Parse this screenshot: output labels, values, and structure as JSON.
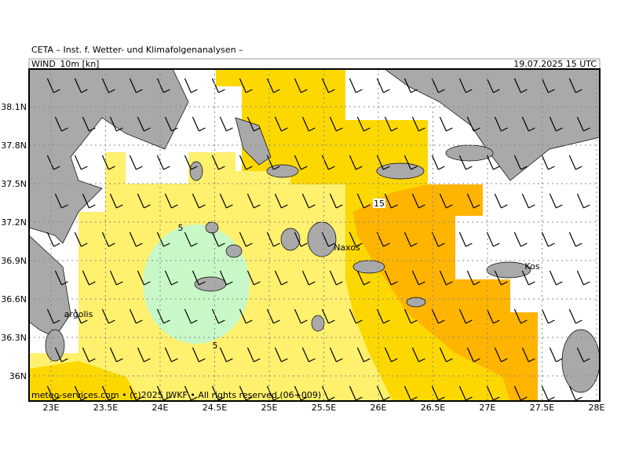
{
  "header": {
    "title": "CETA – Inst. f. Wetter- und Klimafolgenanalysen –",
    "field": "WIND_10m [kn]",
    "valid_time": "19.07.2025 15 UTC"
  },
  "axes": {
    "lon_ticks": [
      {
        "value": 23,
        "label": "23E"
      },
      {
        "value": 23.5,
        "label": "23.5E"
      },
      {
        "value": 24,
        "label": "24E"
      },
      {
        "value": 24.5,
        "label": "24.5E"
      },
      {
        "value": 25,
        "label": "25E"
      },
      {
        "value": 25.5,
        "label": "25.5E"
      },
      {
        "value": 26,
        "label": "26E"
      },
      {
        "value": 26.5,
        "label": "26.5E"
      },
      {
        "value": 27,
        "label": "27E"
      },
      {
        "value": 27.5,
        "label": "27.5E"
      },
      {
        "value": 28,
        "label": "28E"
      }
    ],
    "lat_ticks": [
      {
        "value": 38.1,
        "label": "38.1N"
      },
      {
        "value": 37.8,
        "label": "37.8N"
      },
      {
        "value": 37.5,
        "label": "37.5N"
      },
      {
        "value": 37.2,
        "label": "37.2N"
      },
      {
        "value": 36.9,
        "label": "36.9N"
      },
      {
        "value": 36.6,
        "label": "36.6N"
      },
      {
        "value": 36.3,
        "label": "36.3N"
      },
      {
        "value": 36,
        "label": "36N"
      }
    ]
  },
  "contour_labels": [
    5,
    5,
    15
  ],
  "places": [
    "Naxos",
    "Kos",
    "argolis"
  ],
  "footer": "meteo-services.com • (c)2025 IWKF • All rights reserved (06+009)"
}
